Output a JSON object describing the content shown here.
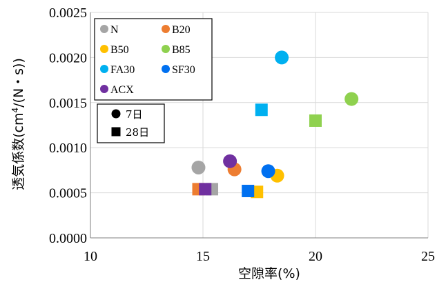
{
  "chart_data": {
    "type": "scatter",
    "xlabel": "空隙率(%)",
    "ylabel_main": "透気係数(cm",
    "ylabel_sup": "4",
    "ylabel_tail": "/(N・s))",
    "xlim": [
      10,
      25
    ],
    "ylim": [
      0,
      0.0025
    ],
    "x_ticks": [
      "10",
      "15",
      "20",
      "25"
    ],
    "y_ticks": [
      "0.0000",
      "0.0005",
      "0.0010",
      "0.0015",
      "0.0020",
      "0.0025"
    ],
    "grid": true,
    "legend_position": "top-left",
    "series": [
      {
        "name": "N",
        "color": "#a5a5a5",
        "points_7d": [
          [
            14.8,
            0.00078
          ]
        ],
        "points_28d": [
          [
            15.4,
            0.00054
          ]
        ]
      },
      {
        "name": "B20",
        "color": "#ed7d31",
        "points_7d": [
          [
            16.4,
            0.00076
          ]
        ],
        "points_28d": [
          [
            14.8,
            0.00054
          ]
        ]
      },
      {
        "name": "B50",
        "color": "#ffc000",
        "points_7d": [
          [
            18.3,
            0.00069
          ]
        ],
        "points_28d": [
          [
            17.4,
            0.00051
          ]
        ]
      },
      {
        "name": "B85",
        "color": "#8fd14f",
        "points_7d": [
          [
            21.6,
            0.00154
          ]
        ],
        "points_28d": [
          [
            20.0,
            0.0013
          ]
        ]
      },
      {
        "name": "FA30",
        "color": "#00b0f0",
        "points_7d": [
          [
            18.5,
            0.002
          ]
        ],
        "points_28d": [
          [
            17.6,
            0.00142
          ]
        ]
      },
      {
        "name": "SF30",
        "color": "#0070f0",
        "points_7d": [
          [
            17.9,
            0.00074
          ]
        ],
        "points_28d": [
          [
            17.0,
            0.00052
          ]
        ]
      },
      {
        "name": "ACX",
        "color": "#7030a0",
        "points_7d": [
          [
            16.2,
            0.00085
          ]
        ],
        "points_28d": [
          [
            15.1,
            0.00054
          ]
        ]
      }
    ],
    "age_legend": [
      {
        "label": "7日",
        "marker": "circle"
      },
      {
        "label": "28日",
        "marker": "square"
      }
    ]
  }
}
